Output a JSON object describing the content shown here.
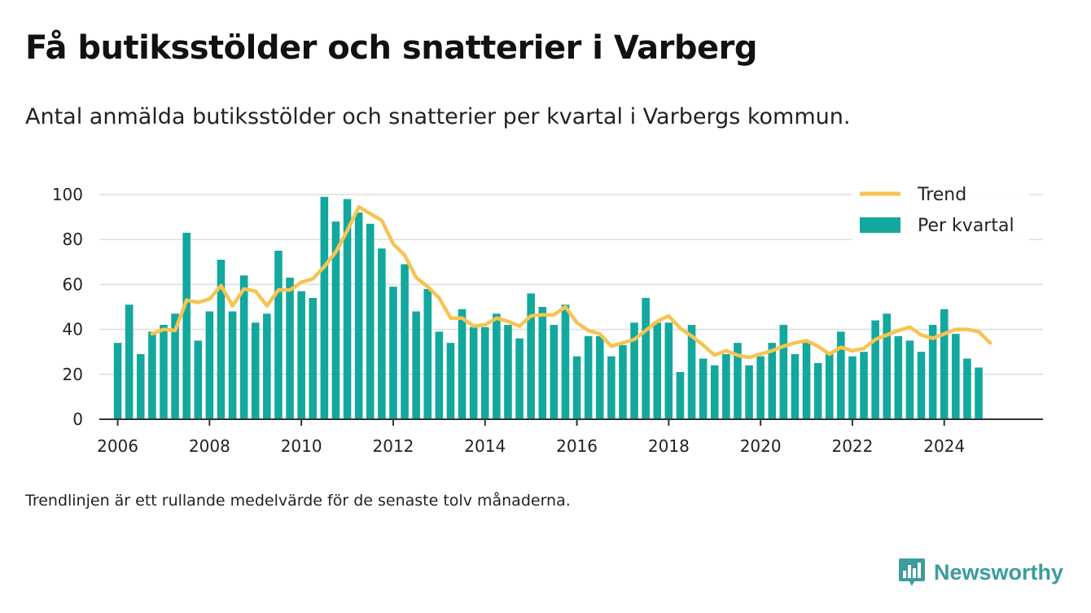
{
  "title": "Få butiksstölder och snatterier i Varberg",
  "subtitle": "Antal anmälda butiksstölder och snatterier per kvartal i Varbergs kommun.",
  "note": "Trendlinjen är ett rullande medelvärde för de senaste tolv månaderna.",
  "brand": "Newsworthy",
  "colors": {
    "bars": "#13a89e",
    "trend": "#f6c452",
    "grid": "#dddddd",
    "axis": "#333333"
  },
  "chart_data": {
    "type": "bar",
    "title": "Få butiksstölder och snatterier i Varberg",
    "subtitle": "Antal anmälda butiksstölder och snatterier per kvartal i Varbergs kommun.",
    "x_start": "2006Q1",
    "xlim": [
      2005.6,
      2026.15
    ],
    "ylim": [
      0,
      100
    ],
    "yticks": [
      0,
      20,
      40,
      60,
      80,
      100
    ],
    "xticks": [
      "2006",
      "2008",
      "2010",
      "2012",
      "2014",
      "2016",
      "2018",
      "2020",
      "2022",
      "2024"
    ],
    "grid": true,
    "legend": {
      "placement": "top-right",
      "entries": [
        "Trend",
        "Per kvartal"
      ]
    },
    "series": [
      {
        "name": "Per kvartal",
        "type": "bar",
        "values": [
          34,
          51,
          29,
          39,
          42,
          47,
          83,
          35,
          48,
          71,
          48,
          64,
          43,
          47,
          75,
          63,
          57,
          54,
          99,
          88,
          98,
          92,
          87,
          76,
          59,
          69,
          48,
          58,
          39,
          34,
          49,
          41,
          41,
          47,
          42,
          36,
          56,
          50,
          42,
          51,
          28,
          37,
          37,
          28,
          33,
          43,
          54,
          43,
          43,
          21,
          42,
          27,
          24,
          29,
          34,
          24,
          28,
          34,
          42,
          29,
          34,
          25,
          30,
          39,
          28,
          30,
          44,
          47,
          37,
          35,
          30,
          42,
          49,
          38,
          27,
          23
        ]
      },
      {
        "name": "Trend",
        "type": "line",
        "start_index": 3,
        "values": [
          38,
          40,
          39.5,
          53,
          52,
          53.5,
          59.5,
          50.5,
          58,
          57,
          50.5,
          57.5,
          57.5,
          61,
          62.5,
          68,
          74.5,
          84,
          94.5,
          91.5,
          88.5,
          78,
          73,
          63,
          59,
          54,
          45,
          45,
          41.5,
          42,
          45,
          43.5,
          41.5,
          46,
          46.5,
          46.5,
          50,
          43,
          39.5,
          38,
          32.5,
          34,
          35.5,
          39.5,
          43.5,
          46,
          40.5,
          37,
          33,
          28.5,
          30.5,
          28.5,
          27.5,
          29,
          30.5,
          32.5,
          34,
          35,
          32.5,
          29,
          32,
          30.5,
          31.5,
          35.5,
          37.5,
          39.5,
          41,
          37.5,
          36,
          38,
          40,
          40,
          39,
          34
        ]
      }
    ]
  }
}
